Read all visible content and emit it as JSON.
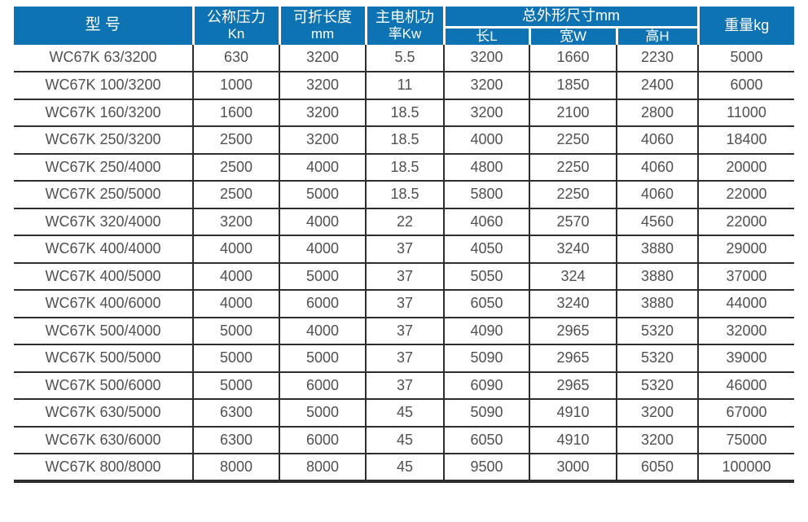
{
  "colors": {
    "header_bg": "#0e73b3",
    "header_text": "#ffffff",
    "body_text": "#4f5052",
    "border": "#2d2d2f",
    "page_bg": "#ffffff"
  },
  "table": {
    "header": {
      "model": "型 号",
      "pressure": [
        "公称压力",
        "Kn"
      ],
      "fold_length": [
        "可折长度",
        "mm"
      ],
      "motor_power": [
        "主电机功",
        "率Kw"
      ],
      "dimensions_group": "总外形尺寸mm",
      "dim_l": "长L",
      "dim_w": "宽W",
      "dim_h": "高H",
      "weight": "重量kg"
    },
    "rows": [
      [
        "WC67K 63/3200",
        "630",
        "3200",
        "5.5",
        "3200",
        "1660",
        "2230",
        "5000"
      ],
      [
        "WC67K 100/3200",
        "1000",
        "3200",
        "11",
        "3200",
        "1850",
        "2400",
        "6000"
      ],
      [
        "WC67K 160/3200",
        "1600",
        "3200",
        "18.5",
        "3200",
        "2100",
        "2800",
        "11000"
      ],
      [
        "WC67K 250/3200",
        "2500",
        "3200",
        "18.5",
        "4000",
        "2250",
        "4060",
        "18400"
      ],
      [
        "WC67K 250/4000",
        "2500",
        "4000",
        "18.5",
        "4800",
        "2250",
        "4060",
        "20000"
      ],
      [
        "WC67K 250/5000",
        "2500",
        "5000",
        "18.5",
        "5800",
        "2250",
        "4060",
        "22000"
      ],
      [
        "WC67K 320/4000",
        "3200",
        "4000",
        "22",
        "4060",
        "2570",
        "4560",
        "22000"
      ],
      [
        "WC67K 400/4000",
        "4000",
        "4000",
        "37",
        "4050",
        "3240",
        "3880",
        "29000"
      ],
      [
        "WC67K 400/5000",
        "4000",
        "5000",
        "37",
        "5050",
        "324",
        "3880",
        "37000"
      ],
      [
        "WC67K 400/6000",
        "4000",
        "6000",
        "37",
        "6050",
        "3240",
        "3880",
        "44000"
      ],
      [
        "WC67K 500/4000",
        "5000",
        "4000",
        "37",
        "4090",
        "2965",
        "5320",
        "32000"
      ],
      [
        "WC67K 500/5000",
        "5000",
        "5000",
        "37",
        "5090",
        "2965",
        "5320",
        "39000"
      ],
      [
        "WC67K 500/6000",
        "5000",
        "6000",
        "37",
        "6090",
        "2965",
        "5320",
        "46000"
      ],
      [
        "WC67K 630/5000",
        "6300",
        "5000",
        "45",
        "5090",
        "4910",
        "3200",
        "67000"
      ],
      [
        "WC67K 630/6000",
        "6300",
        "6000",
        "45",
        "6050",
        "4910",
        "3200",
        "75000"
      ],
      [
        "WC67K 800/8000",
        "8000",
        "8000",
        "45",
        "9500",
        "3000",
        "6050",
        "100000"
      ]
    ]
  }
}
